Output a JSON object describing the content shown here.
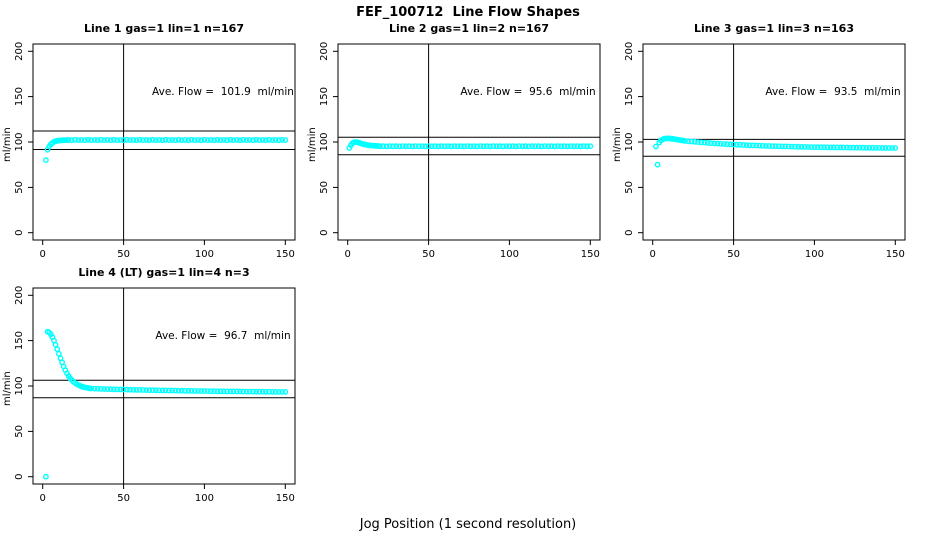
{
  "figure": {
    "title": "FEF_100712  Line Flow Shapes",
    "xlabel": "Jog Position (1 second resolution)",
    "background_color": "#ffffff",
    "point_color": "#00ffff",
    "axis_color": "#000000"
  },
  "chart_data": [
    {
      "type": "scatter",
      "title": "Line 1 gas=1 lin=1 n=167",
      "annotation": "Ave. Flow =  101.9  ml/min",
      "ave_flow": 101.9,
      "n": 167,
      "ylabel": "ml/min",
      "xlim": [
        0,
        150
      ],
      "ylim": [
        0,
        200
      ],
      "xticks": [
        0,
        50,
        100,
        150
      ],
      "yticks": [
        0,
        50,
        100,
        150,
        200
      ],
      "vline_x": 50,
      "hlines": [
        112.1,
        91.7
      ],
      "grid": false,
      "points": [
        [
          2,
          80
        ],
        [
          3,
          91.5
        ],
        [
          4,
          95
        ],
        [
          5,
          97.5
        ],
        [
          6,
          99
        ],
        [
          7,
          100.2
        ],
        [
          8,
          100.9
        ],
        [
          9,
          101.3
        ],
        [
          10,
          101.6
        ],
        [
          11,
          101.8
        ],
        [
          12,
          101.9
        ],
        [
          13,
          102
        ],
        [
          14,
          102.1
        ],
        [
          15,
          102.1
        ],
        [
          16,
          102.2
        ],
        [
          18,
          102
        ],
        [
          20,
          102.4
        ],
        [
          22,
          102.1
        ],
        [
          24,
          102.2
        ],
        [
          26,
          102
        ],
        [
          28,
          102.4
        ],
        [
          30,
          102.1
        ],
        [
          32,
          102.2
        ],
        [
          34,
          102
        ],
        [
          36,
          102.4
        ],
        [
          38,
          102.1
        ],
        [
          40,
          102.2
        ],
        [
          42,
          102
        ],
        [
          44,
          102.4
        ],
        [
          46,
          102.1
        ],
        [
          48,
          102.2
        ],
        [
          50,
          102
        ],
        [
          52,
          102.4
        ],
        [
          54,
          102.1
        ],
        [
          56,
          102.2
        ],
        [
          58,
          102
        ],
        [
          60,
          102.4
        ],
        [
          62,
          102.1
        ],
        [
          64,
          102.2
        ],
        [
          66,
          102
        ],
        [
          68,
          102.4
        ],
        [
          70,
          102.1
        ],
        [
          72,
          102.2
        ],
        [
          74,
          102
        ],
        [
          76,
          102.4
        ],
        [
          78,
          102.1
        ],
        [
          80,
          102.2
        ],
        [
          82,
          102
        ],
        [
          84,
          102.4
        ],
        [
          86,
          102.1
        ],
        [
          88,
          102.2
        ],
        [
          90,
          102
        ],
        [
          92,
          102.4
        ],
        [
          94,
          102.1
        ],
        [
          96,
          102.2
        ],
        [
          98,
          102
        ],
        [
          100,
          102.4
        ],
        [
          102,
          102.1
        ],
        [
          104,
          102.2
        ],
        [
          106,
          102
        ],
        [
          108,
          102.4
        ],
        [
          110,
          102.1
        ],
        [
          112,
          102.2
        ],
        [
          114,
          102
        ],
        [
          116,
          102.4
        ],
        [
          118,
          102.1
        ],
        [
          120,
          102.2
        ],
        [
          122,
          102
        ],
        [
          124,
          102.4
        ],
        [
          126,
          102.1
        ],
        [
          128,
          102.2
        ],
        [
          130,
          102
        ],
        [
          132,
          102.4
        ],
        [
          134,
          102.1
        ],
        [
          136,
          102.2
        ],
        [
          138,
          102
        ],
        [
          140,
          102.4
        ],
        [
          142,
          102.1
        ],
        [
          144,
          102.2
        ],
        [
          146,
          102
        ],
        [
          148,
          102.4
        ],
        [
          150,
          102.1
        ]
      ]
    },
    {
      "type": "scatter",
      "title": "Line 2 gas=1 lin=2 n=167",
      "annotation": "Ave. Flow =  95.6  ml/min",
      "ave_flow": 95.6,
      "n": 167,
      "ylabel": "ml/min",
      "xlim": [
        0,
        150
      ],
      "ylim": [
        0,
        200
      ],
      "xticks": [
        0,
        50,
        100,
        150
      ],
      "yticks": [
        0,
        50,
        100,
        150,
        200
      ],
      "vline_x": 50,
      "hlines": [
        105.2,
        86.0
      ],
      "grid": false,
      "points": [
        [
          1,
          93.5
        ],
        [
          2,
          96.5
        ],
        [
          3,
          98.8
        ],
        [
          4,
          99.8
        ],
        [
          5,
          100
        ],
        [
          6,
          99.7
        ],
        [
          7,
          99.2
        ],
        [
          8,
          98.6
        ],
        [
          9,
          98
        ],
        [
          10,
          97.5
        ],
        [
          11,
          97.1
        ],
        [
          12,
          96.8
        ],
        [
          13,
          96.5
        ],
        [
          14,
          96.2
        ],
        [
          15,
          96
        ],
        [
          16,
          95.9
        ],
        [
          17,
          95.8
        ],
        [
          18,
          95.7
        ],
        [
          19,
          95.6
        ],
        [
          20,
          95.5
        ],
        [
          22,
          95.4
        ],
        [
          24,
          95.2
        ],
        [
          26,
          95.5
        ],
        [
          28,
          95.3
        ],
        [
          30,
          95.4
        ],
        [
          32,
          95.2
        ],
        [
          34,
          95.5
        ],
        [
          36,
          95.3
        ],
        [
          38,
          95.4
        ],
        [
          40,
          95.2
        ],
        [
          42,
          95.5
        ],
        [
          44,
          95.3
        ],
        [
          46,
          95.4
        ],
        [
          48,
          95.2
        ],
        [
          50,
          95.5
        ],
        [
          52,
          95.3
        ],
        [
          54,
          95.4
        ],
        [
          56,
          95.2
        ],
        [
          58,
          95.5
        ],
        [
          60,
          95.3
        ],
        [
          62,
          95.4
        ],
        [
          64,
          95.2
        ],
        [
          66,
          95.5
        ],
        [
          68,
          95.3
        ],
        [
          70,
          95.4
        ],
        [
          72,
          95.2
        ],
        [
          74,
          95.5
        ],
        [
          76,
          95.3
        ],
        [
          78,
          95.4
        ],
        [
          80,
          95.2
        ],
        [
          82,
          95.5
        ],
        [
          84,
          95.3
        ],
        [
          86,
          95.4
        ],
        [
          88,
          95.2
        ],
        [
          90,
          95.5
        ],
        [
          92,
          95.3
        ],
        [
          94,
          95.4
        ],
        [
          96,
          95.2
        ],
        [
          98,
          95.5
        ],
        [
          100,
          95.3
        ],
        [
          102,
          95.4
        ],
        [
          104,
          95.2
        ],
        [
          106,
          95.5
        ],
        [
          108,
          95.3
        ],
        [
          110,
          95.4
        ],
        [
          112,
          95.2
        ],
        [
          114,
          95.5
        ],
        [
          116,
          95.3
        ],
        [
          118,
          95.4
        ],
        [
          120,
          95.2
        ],
        [
          122,
          95.5
        ],
        [
          124,
          95.3
        ],
        [
          126,
          95.4
        ],
        [
          128,
          95.2
        ],
        [
          130,
          95.5
        ],
        [
          132,
          95.3
        ],
        [
          134,
          95.4
        ],
        [
          136,
          95.2
        ],
        [
          138,
          95.5
        ],
        [
          140,
          95.3
        ],
        [
          142,
          95.4
        ],
        [
          144,
          95.2
        ],
        [
          146,
          95.5
        ],
        [
          148,
          95.3
        ],
        [
          150,
          95.4
        ]
      ]
    },
    {
      "type": "scatter",
      "title": "Line 3 gas=1 lin=3 n=163",
      "annotation": "Ave. Flow =  93.5  ml/min",
      "ave_flow": 93.5,
      "n": 163,
      "ylabel": "ml/min",
      "xlim": [
        0,
        150
      ],
      "ylim": [
        0,
        200
      ],
      "xticks": [
        0,
        50,
        100,
        150
      ],
      "yticks": [
        0,
        50,
        100,
        150,
        200
      ],
      "vline_x": 50,
      "hlines": [
        102.9,
        84.2
      ],
      "grid": false,
      "points": [
        [
          2,
          95
        ],
        [
          3,
          75
        ],
        [
          4,
          99.5
        ],
        [
          5,
          101.5
        ],
        [
          6,
          102.8
        ],
        [
          7,
          103.5
        ],
        [
          8,
          103.9
        ],
        [
          9,
          104
        ],
        [
          10,
          104
        ],
        [
          11,
          103.8
        ],
        [
          12,
          103.6
        ],
        [
          13,
          103.3
        ],
        [
          14,
          103
        ],
        [
          15,
          102.7
        ],
        [
          16,
          102.4
        ],
        [
          17,
          102.1
        ],
        [
          18,
          101.8
        ],
        [
          19,
          101.5
        ],
        [
          20,
          101.2
        ],
        [
          22,
          100.8
        ],
        [
          24,
          100.5
        ],
        [
          26,
          100.2
        ],
        [
          28,
          99.9
        ],
        [
          30,
          99.6
        ],
        [
          32,
          99.3
        ],
        [
          34,
          99
        ],
        [
          36,
          98.7
        ],
        [
          38,
          98.5
        ],
        [
          40,
          98.3
        ],
        [
          42,
          98
        ],
        [
          44,
          97.8
        ],
        [
          46,
          97.6
        ],
        [
          48,
          97.4
        ],
        [
          50,
          97.2
        ],
        [
          52,
          97
        ],
        [
          54,
          96.9
        ],
        [
          56,
          96.7
        ],
        [
          58,
          96.5
        ],
        [
          60,
          96.4
        ],
        [
          62,
          96.2
        ],
        [
          64,
          96.1
        ],
        [
          66,
          96
        ],
        [
          68,
          95.8
        ],
        [
          70,
          95.7
        ],
        [
          72,
          95.6
        ],
        [
          74,
          95.5
        ],
        [
          76,
          95.4
        ],
        [
          78,
          95.3
        ],
        [
          80,
          95.2
        ],
        [
          82,
          95.1
        ],
        [
          84,
          95
        ],
        [
          86,
          94.9
        ],
        [
          88,
          94.8
        ],
        [
          90,
          94.7
        ],
        [
          92,
          94.7
        ],
        [
          94,
          94.6
        ],
        [
          96,
          94.5
        ],
        [
          98,
          94.4
        ],
        [
          100,
          94.4
        ],
        [
          102,
          94.3
        ],
        [
          104,
          94.3
        ],
        [
          106,
          94.2
        ],
        [
          108,
          94.2
        ],
        [
          110,
          94.1
        ],
        [
          112,
          94.1
        ],
        [
          114,
          94
        ],
        [
          116,
          94
        ],
        [
          118,
          93.9
        ],
        [
          120,
          93.9
        ],
        [
          122,
          93.8
        ],
        [
          124,
          93.8
        ],
        [
          126,
          93.7
        ],
        [
          128,
          93.7
        ],
        [
          130,
          93.7
        ],
        [
          132,
          93.6
        ],
        [
          134,
          93.6
        ],
        [
          136,
          93.6
        ],
        [
          138,
          93.5
        ],
        [
          140,
          93.5
        ],
        [
          142,
          93.5
        ],
        [
          144,
          93.4
        ],
        [
          146,
          93.4
        ],
        [
          148,
          93.4
        ],
        [
          150,
          93.4
        ]
      ]
    },
    {
      "type": "scatter",
      "title": "Line 4 (LT) gas=1 lin=4 n=3",
      "annotation": "Ave. Flow =  96.7  ml/min",
      "ave_flow": 96.7,
      "n": 3,
      "ylabel": "ml/min",
      "xlim": [
        0,
        150
      ],
      "ylim": [
        0,
        200
      ],
      "xticks": [
        0,
        50,
        100,
        150
      ],
      "yticks": [
        0,
        50,
        100,
        150,
        200
      ],
      "vline_x": 50,
      "hlines": [
        106.4,
        87.0
      ],
      "grid": false,
      "points": [
        [
          2,
          0
        ],
        [
          3,
          160
        ],
        [
          4,
          159
        ],
        [
          5,
          157
        ],
        [
          6,
          154
        ],
        [
          7,
          150
        ],
        [
          8,
          145.5
        ],
        [
          9,
          140.5
        ],
        [
          10,
          135.5
        ],
        [
          11,
          130.5
        ],
        [
          12,
          126
        ],
        [
          13,
          121.5
        ],
        [
          14,
          117.5
        ],
        [
          15,
          114
        ],
        [
          16,
          111
        ],
        [
          17,
          108.5
        ],
        [
          18,
          106.5
        ],
        [
          19,
          104.8
        ],
        [
          20,
          103.3
        ],
        [
          21,
          102.1
        ],
        [
          22,
          101.1
        ],
        [
          23,
          100.3
        ],
        [
          24,
          99.6
        ],
        [
          25,
          99
        ],
        [
          26,
          98.5
        ],
        [
          27,
          98.1
        ],
        [
          28,
          97.8
        ],
        [
          29,
          97.5
        ],
        [
          30,
          97.2
        ],
        [
          32,
          97.1
        ],
        [
          34,
          97
        ],
        [
          36,
          96.8
        ],
        [
          38,
          96.7
        ],
        [
          40,
          96.6
        ],
        [
          42,
          96.5
        ],
        [
          44,
          96.4
        ],
        [
          46,
          96.3
        ],
        [
          48,
          96.2
        ],
        [
          50,
          96.1
        ],
        [
          52,
          96
        ],
        [
          54,
          95.9
        ],
        [
          56,
          95.8
        ],
        [
          58,
          95.7
        ],
        [
          60,
          95.7
        ],
        [
          62,
          95.6
        ],
        [
          64,
          95.5
        ],
        [
          66,
          95.4
        ],
        [
          68,
          95.4
        ],
        [
          70,
          95.3
        ],
        [
          72,
          95.2
        ],
        [
          74,
          95.1
        ],
        [
          76,
          95.1
        ],
        [
          78,
          95
        ],
        [
          80,
          95
        ],
        [
          82,
          94.9
        ],
        [
          84,
          94.8
        ],
        [
          86,
          94.8
        ],
        [
          88,
          94.7
        ],
        [
          90,
          94.7
        ],
        [
          92,
          94.6
        ],
        [
          94,
          94.6
        ],
        [
          96,
          94.5
        ],
        [
          98,
          94.5
        ],
        [
          100,
          94.4
        ],
        [
          102,
          94.4
        ],
        [
          104,
          94.3
        ],
        [
          106,
          94.3
        ],
        [
          108,
          94.2
        ],
        [
          110,
          94.2
        ],
        [
          112,
          94.1
        ],
        [
          114,
          94.1
        ],
        [
          116,
          94
        ],
        [
          118,
          94
        ],
        [
          120,
          94
        ],
        [
          122,
          93.9
        ],
        [
          124,
          93.9
        ],
        [
          126,
          93.8
        ],
        [
          128,
          93.8
        ],
        [
          130,
          93.8
        ],
        [
          132,
          93.7
        ],
        [
          134,
          93.7
        ],
        [
          136,
          93.7
        ],
        [
          138,
          93.6
        ],
        [
          140,
          93.6
        ],
        [
          142,
          93.6
        ],
        [
          144,
          93.5
        ],
        [
          146,
          93.5
        ],
        [
          148,
          93.5
        ],
        [
          150,
          93.5
        ]
      ]
    }
  ]
}
